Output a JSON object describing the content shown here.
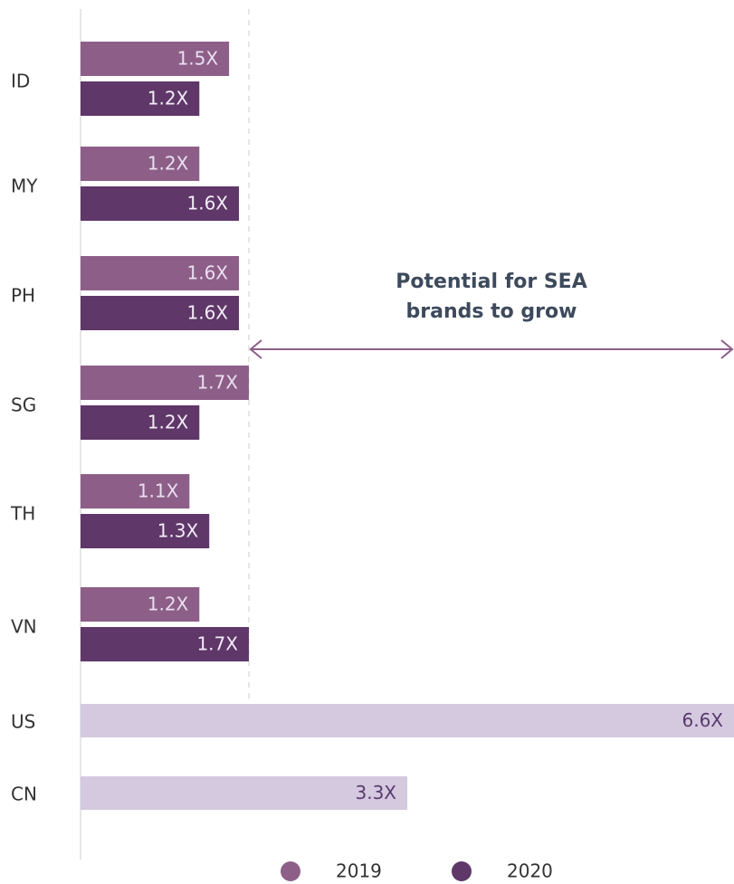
{
  "chart_data": {
    "type": "hbar",
    "categories": [
      "ID",
      "MY",
      "PH",
      "SG",
      "TH",
      "VN",
      "US",
      "CN"
    ],
    "series": [
      {
        "name": "2019",
        "color": "#8d5f88",
        "values": [
          1.5,
          1.2,
          1.6,
          1.7,
          1.1,
          1.2,
          null,
          null
        ],
        "value_labels": [
          "1.5X",
          "1.2X",
          "1.6X",
          "1.7X",
          "1.1X",
          "1.2X",
          null,
          null
        ]
      },
      {
        "name": "2020",
        "color": "#5f3769",
        "values": [
          1.2,
          1.6,
          1.6,
          1.2,
          1.3,
          1.7,
          null,
          null
        ],
        "value_labels": [
          "1.2X",
          "1.6X",
          "1.6X",
          "1.2X",
          "1.3X",
          "1.7X",
          null,
          null
        ]
      },
      {
        "color": "#d4c9df",
        "values": [
          null,
          null,
          null,
          null,
          null,
          null,
          6.6,
          3.3
        ],
        "value_labels": [
          null,
          null,
          null,
          null,
          null,
          null,
          "6.6X",
          "3.3X"
        ]
      }
    ],
    "xlim": [
      0,
      6.6
    ],
    "annotation": {
      "lines": [
        "Potential for SEA",
        "brands to grow"
      ],
      "from": 1.7,
      "to": 6.6
    }
  }
}
